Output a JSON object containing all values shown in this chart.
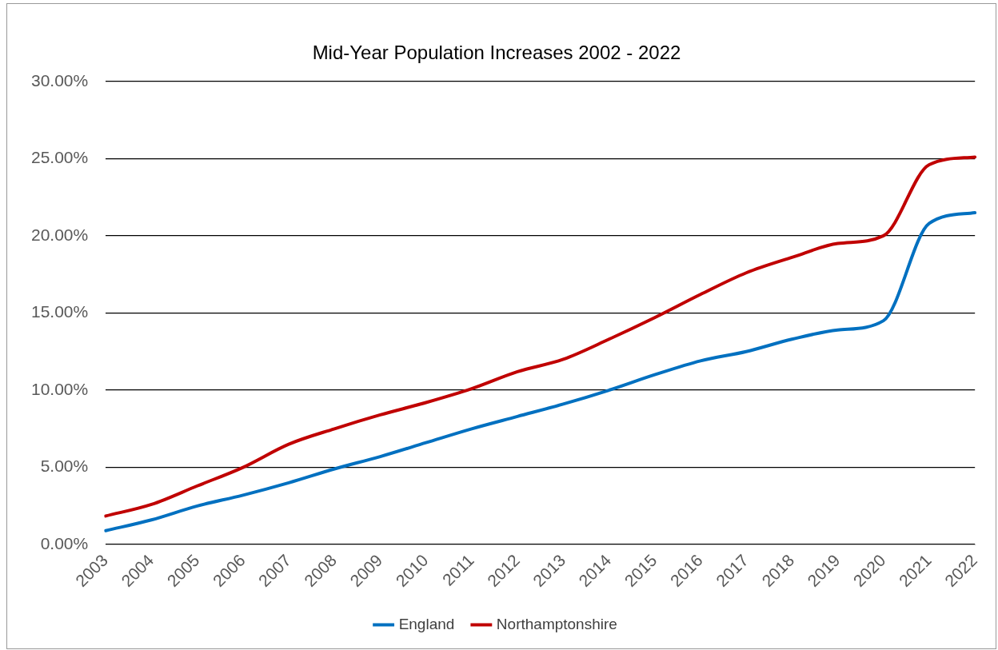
{
  "chart_data": {
    "type": "line",
    "title": "Mid-Year Population Increases 2002 - 2022",
    "categories": [
      "2003",
      "2004",
      "2005",
      "2006",
      "2007",
      "2008",
      "2009",
      "2010",
      "2011",
      "2012",
      "2013",
      "2014",
      "2015",
      "2016",
      "2017",
      "2018",
      "2019",
      "2020",
      "2021",
      "2022"
    ],
    "series": [
      {
        "name": "England",
        "color": "#0070c0",
        "values": [
          0.9,
          1.6,
          2.5,
          3.2,
          4.0,
          4.9,
          5.7,
          6.6,
          7.5,
          8.3,
          9.1,
          10.0,
          11.0,
          11.9,
          12.5,
          13.3,
          13.9,
          14.5,
          20.8,
          21.5
        ]
      },
      {
        "name": "Northamptonshire",
        "color": "#c00000",
        "values": [
          1.85,
          2.6,
          3.8,
          5.0,
          6.5,
          7.5,
          8.4,
          9.2,
          10.1,
          11.2,
          12.0,
          13.3,
          14.7,
          16.2,
          17.6,
          18.6,
          19.5,
          20.0,
          24.6,
          25.1
        ]
      }
    ],
    "ylim": [
      0,
      30
    ],
    "yticks": [
      {
        "value": 0,
        "label": "0.00%"
      },
      {
        "value": 5,
        "label": "5.00%"
      },
      {
        "value": 10,
        "label": "10.00%"
      },
      {
        "value": 15,
        "label": "15.00%"
      },
      {
        "value": 20,
        "label": "20.00%"
      },
      {
        "value": 25,
        "label": "25.00%"
      },
      {
        "value": 30,
        "label": "30.00%"
      }
    ],
    "grid": "y",
    "legend": "bottom",
    "marker": "none",
    "line_style": "solid"
  }
}
